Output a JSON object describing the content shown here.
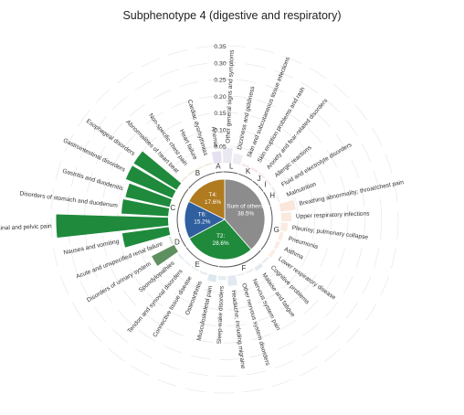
{
  "chart_data": {
    "type": "radial-bar",
    "title": "Subphenotype 4 (digestive and respiratory)",
    "radial_axis": {
      "ticks": [
        "0.05",
        "0.10",
        "0.15",
        "0.20",
        "0.25",
        "0.30",
        "0.35"
      ],
      "max": 0.35
    },
    "colors": {
      "grey": "#8c8c8c",
      "brown": "#b07a1e",
      "blue": "#2f5f9e",
      "green": "#1f8a3c",
      "light_green": "#5f8f5f"
    },
    "categories": [
      {
        "label": "Anemia",
        "group": "A",
        "value": 0.035,
        "color": "#e6e1ef"
      },
      {
        "label": "Other general signs and symptoms",
        "group": "L",
        "value": 0.045,
        "color": "#e9e7f1"
      },
      {
        "label": "Dizziness and giddiness",
        "group": "L",
        "value": 0.03,
        "color": "#efedf4"
      },
      {
        "label": "Skin and subcutaneous tissue infections",
        "group": "K",
        "value": 0.006,
        "color": "#f6e5e8"
      },
      {
        "label": "Skin eruption problems and rash",
        "group": "K",
        "value": 0.006,
        "color": "#f6e5e8"
      },
      {
        "label": "Anxiety and fear-related disorders",
        "group": "J",
        "value": 0.006,
        "color": "#f7e9e5"
      },
      {
        "label": "Allergic reactions",
        "group": "I",
        "value": 0.004,
        "color": "#f7e2e2"
      },
      {
        "label": "Fluid and electrolyte disorders",
        "group": "H",
        "value": 0.004,
        "color": "#ebe4f0"
      },
      {
        "label": "Malnutrition",
        "group": "H",
        "value": 0.003,
        "color": "#ebe4f0"
      },
      {
        "label": "Breathing abnormality; throat/chest pain",
        "group": "G",
        "value": 0.045,
        "color": "#fae6da"
      },
      {
        "label": "Upper respiratory infections",
        "group": "G",
        "value": 0.03,
        "color": "#fae9df"
      },
      {
        "label": "Pleurisy; pulmonary collapse",
        "group": "G",
        "value": 0.02,
        "color": "#fbebe2"
      },
      {
        "label": "Pneumonia",
        "group": "G",
        "value": 0.012,
        "color": "#fbece4"
      },
      {
        "label": "Asthma",
        "group": "G",
        "value": 0.01,
        "color": "#fbece4"
      },
      {
        "label": "Lower respiratory disease",
        "group": "G",
        "value": 0.01,
        "color": "#fbece4"
      },
      {
        "label": "Cognitive problems",
        "group": "F",
        "value": 0.006,
        "color": "#e7edf2"
      },
      {
        "label": "Malaise and fatigue",
        "group": "F",
        "value": 0.012,
        "color": "#e3e9f0"
      },
      {
        "label": "Nervous system pain",
        "group": "F",
        "value": 0.005,
        "color": "#e7edf2"
      },
      {
        "label": "Other nervous system disorders",
        "group": "F",
        "value": 0.004,
        "color": "#e7edf2"
      },
      {
        "label": "Headache; including migraine",
        "group": "F",
        "value": 0.03,
        "color": "#e3e9f0"
      },
      {
        "label": "Sleep-wake disorders",
        "group": "F",
        "value": 0.012,
        "color": "#e7edf2"
      },
      {
        "label": "Musculoskeletal pain",
        "group": "E",
        "value": 0.02,
        "color": "#dde7ee"
      },
      {
        "label": "Osteoarthritis",
        "group": "E",
        "value": 0.006,
        "color": "#e6edf2"
      },
      {
        "label": "Connective tissue disease",
        "group": "E",
        "value": 0.005,
        "color": "#e6edf2"
      },
      {
        "label": "Tendon and synovial disorders",
        "group": "E",
        "value": 0.004,
        "color": "#e6edf2"
      },
      {
        "label": "Spondylopathies",
        "group": "E",
        "value": 0.006,
        "color": "#e6edf2"
      },
      {
        "label": "Disorders of urinary system",
        "group": "D",
        "value": 0.075,
        "color": "#5f8f5f"
      },
      {
        "label": "Acute and unspecified renal failure",
        "group": "D",
        "value": 0.006,
        "color": "#d9e6d9"
      },
      {
        "label": "Nausea and vomiting",
        "group": "C",
        "value": 0.14,
        "color": "#1f8a3c"
      },
      {
        "label": "Abdominal and pelvic pain",
        "group": "C",
        "value": 0.335,
        "color": "#1f8a3c"
      },
      {
        "label": "Disorders of stomach and duodenum",
        "group": "C",
        "value": 0.14,
        "color": "#1f8a3c"
      },
      {
        "label": "Gastritis and duodenitis",
        "group": "C",
        "value": 0.135,
        "color": "#1f8a3c"
      },
      {
        "label": "Gastrointestinal disorders",
        "group": "C",
        "value": 0.15,
        "color": "#1f8a3c"
      },
      {
        "label": "Esophageal disorders",
        "group": "C",
        "value": 0.15,
        "color": "#1f8a3c"
      },
      {
        "label": "Abnormalities of heart beat",
        "group": "B",
        "value": 0.004,
        "color": "#efe5d5"
      },
      {
        "label": "Non-specific chest pain",
        "group": "B",
        "value": 0.004,
        "color": "#efe5d5"
      },
      {
        "label": "Heart failure",
        "group": "B",
        "value": 0.003,
        "color": "#efe5d5"
      },
      {
        "label": "Cardiac dysrhythmias",
        "group": "B",
        "value": 0.004,
        "color": "#efe5d5"
      }
    ],
    "groups": [
      "A",
      "B",
      "C",
      "D",
      "E",
      "F",
      "G",
      "H",
      "I",
      "J",
      "K",
      "L"
    ],
    "pie": [
      {
        "label": "Sum of others:",
        "pct": "38.5%",
        "value": 38.5,
        "color": "#8c8c8c"
      },
      {
        "label": "T2:",
        "pct": "28.6%",
        "value": 28.6,
        "color": "#1f8a3c"
      },
      {
        "label": "T6:",
        "pct": "15.2%",
        "value": 15.2,
        "color": "#2f5f9e"
      },
      {
        "label": "T4:",
        "pct": "17.6%",
        "value": 17.6,
        "color": "#b07a1e"
      }
    ]
  }
}
